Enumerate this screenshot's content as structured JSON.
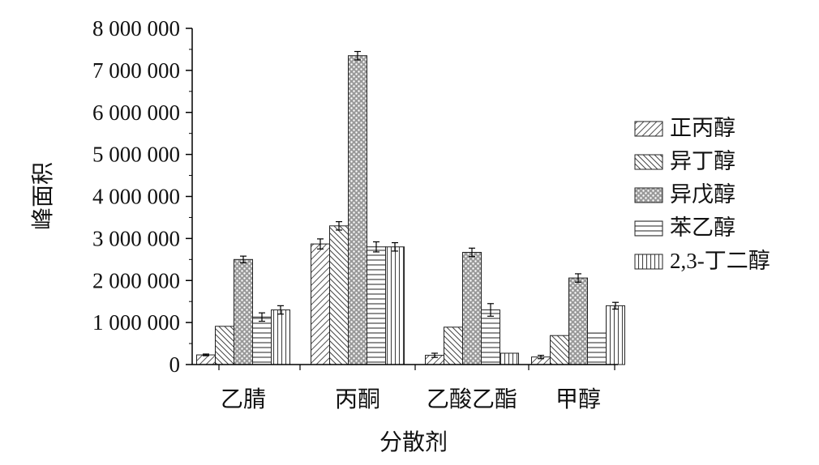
{
  "chart_data": {
    "type": "bar",
    "title": "",
    "xlabel": "分散剂",
    "ylabel": "峰面积",
    "ylim": [
      0,
      8000000
    ],
    "yticks": [
      "0",
      "1 000 000",
      "2 000 000",
      "3 000 000",
      "4 000 000",
      "5 000 000",
      "6 000 000",
      "7 000 000",
      "8 000 000"
    ],
    "categories": [
      "乙腈",
      "丙酮",
      "乙酸乙酯",
      "甲醇"
    ],
    "legend_position": "right",
    "series": [
      {
        "name": "正丙醇",
        "pattern": "diag-right",
        "values": [
          230000,
          2870000,
          220000,
          180000
        ],
        "errors": [
          20000,
          120000,
          50000,
          40000
        ]
      },
      {
        "name": "异丁醇",
        "pattern": "diag-left",
        "values": [
          910000,
          3300000,
          890000,
          690000
        ],
        "errors": [
          0,
          100000,
          0,
          0
        ]
      },
      {
        "name": "异戊醇",
        "pattern": "checker",
        "values": [
          2500000,
          7350000,
          2670000,
          2060000
        ],
        "errors": [
          80000,
          100000,
          100000,
          100000
        ]
      },
      {
        "name": "苯乙醇",
        "pattern": "horizontal",
        "values": [
          1130000,
          2800000,
          1300000,
          750000
        ],
        "errors": [
          100000,
          120000,
          150000,
          0
        ]
      },
      {
        "name": "2,3-丁二醇",
        "pattern": "vertical",
        "values": [
          1300000,
          2800000,
          270000,
          1400000
        ],
        "errors": [
          100000,
          100000,
          0,
          80000
        ]
      }
    ]
  }
}
